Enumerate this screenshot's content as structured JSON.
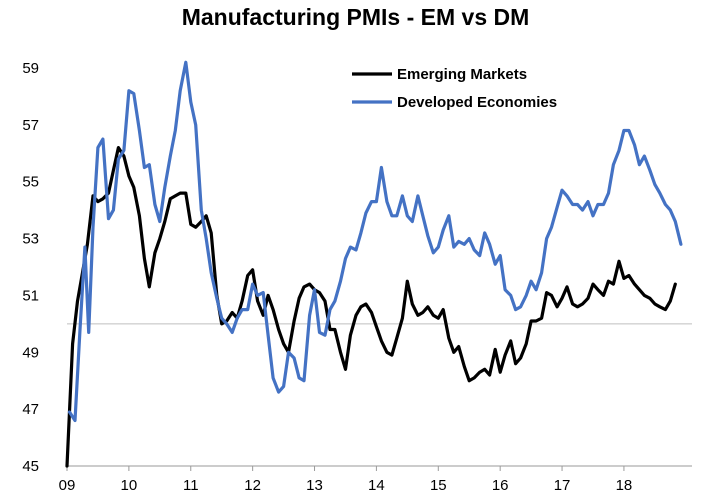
{
  "chart_data": {
    "type": "line",
    "title": "Manufacturing PMIs - EM vs DM",
    "xlabel": "",
    "ylabel": "",
    "xlim": [
      2009.0,
      2019.1
    ],
    "ylim": [
      45,
      59
    ],
    "y_ticks": [
      45,
      47,
      49,
      51,
      53,
      55,
      57,
      59
    ],
    "x_ticks": [
      {
        "value": 2009.0,
        "label": "09"
      },
      {
        "value": 2010.0,
        "label": "10"
      },
      {
        "value": 2011.0,
        "label": "11"
      },
      {
        "value": 2012.0,
        "label": "12"
      },
      {
        "value": 2013.0,
        "label": "13"
      },
      {
        "value": 2014.0,
        "label": "14"
      },
      {
        "value": 2015.0,
        "label": "15"
      },
      {
        "value": 2016.0,
        "label": "16"
      },
      {
        "value": 2017.0,
        "label": "17"
      },
      {
        "value": 2018.0,
        "label": "18"
      }
    ],
    "reference_line": 50,
    "grid": false,
    "legend_position": "top-right",
    "series": [
      {
        "name": "Emerging Markets",
        "color": "#000000",
        "points": [
          [
            2009.0,
            45.0
          ],
          [
            2009.09,
            49.3
          ],
          [
            2009.17,
            50.8
          ],
          [
            2009.25,
            51.8
          ],
          [
            2009.33,
            52.8
          ],
          [
            2009.42,
            54.5
          ],
          [
            2009.5,
            54.3
          ],
          [
            2009.58,
            54.4
          ],
          [
            2009.67,
            54.6
          ],
          [
            2009.75,
            55.4
          ],
          [
            2009.83,
            56.2
          ],
          [
            2009.92,
            55.9
          ],
          [
            2010.0,
            55.2
          ],
          [
            2010.08,
            54.8
          ],
          [
            2010.17,
            53.8
          ],
          [
            2010.25,
            52.3
          ],
          [
            2010.33,
            51.3
          ],
          [
            2010.42,
            52.5
          ],
          [
            2010.5,
            53.0
          ],
          [
            2010.58,
            53.6
          ],
          [
            2010.67,
            54.4
          ],
          [
            2010.75,
            54.5
          ],
          [
            2010.83,
            54.6
          ],
          [
            2010.92,
            54.6
          ],
          [
            2011.0,
            53.5
          ],
          [
            2011.08,
            53.4
          ],
          [
            2011.17,
            53.6
          ],
          [
            2011.25,
            53.8
          ],
          [
            2011.33,
            53.2
          ],
          [
            2011.42,
            51.0
          ],
          [
            2011.5,
            50.0
          ],
          [
            2011.58,
            50.1
          ],
          [
            2011.67,
            50.4
          ],
          [
            2011.75,
            50.2
          ],
          [
            2011.83,
            50.8
          ],
          [
            2011.92,
            51.7
          ],
          [
            2012.0,
            51.9
          ],
          [
            2012.08,
            50.8
          ],
          [
            2012.17,
            50.3
          ],
          [
            2012.25,
            51.0
          ],
          [
            2012.33,
            50.5
          ],
          [
            2012.42,
            49.8
          ],
          [
            2012.5,
            49.3
          ],
          [
            2012.58,
            49.0
          ],
          [
            2012.67,
            50.1
          ],
          [
            2012.75,
            50.9
          ],
          [
            2012.83,
            51.3
          ],
          [
            2012.92,
            51.4
          ],
          [
            2013.0,
            51.2
          ],
          [
            2013.08,
            51.1
          ],
          [
            2013.17,
            50.8
          ],
          [
            2013.25,
            49.8
          ],
          [
            2013.33,
            49.8
          ],
          [
            2013.42,
            49.0
          ],
          [
            2013.5,
            48.4
          ],
          [
            2013.58,
            49.6
          ],
          [
            2013.67,
            50.3
          ],
          [
            2013.75,
            50.6
          ],
          [
            2013.83,
            50.7
          ],
          [
            2013.92,
            50.4
          ],
          [
            2014.0,
            49.9
          ],
          [
            2014.08,
            49.4
          ],
          [
            2014.17,
            49.0
          ],
          [
            2014.25,
            48.9
          ],
          [
            2014.33,
            49.5
          ],
          [
            2014.42,
            50.2
          ],
          [
            2014.5,
            51.5
          ],
          [
            2014.58,
            50.7
          ],
          [
            2014.67,
            50.3
          ],
          [
            2014.75,
            50.4
          ],
          [
            2014.83,
            50.6
          ],
          [
            2014.92,
            50.3
          ],
          [
            2015.0,
            50.2
          ],
          [
            2015.08,
            50.5
          ],
          [
            2015.17,
            49.5
          ],
          [
            2015.25,
            49.0
          ],
          [
            2015.33,
            49.2
          ],
          [
            2015.42,
            48.5
          ],
          [
            2015.5,
            48.0
          ],
          [
            2015.58,
            48.1
          ],
          [
            2015.67,
            48.3
          ],
          [
            2015.75,
            48.4
          ],
          [
            2015.83,
            48.2
          ],
          [
            2015.92,
            49.1
          ],
          [
            2016.0,
            48.3
          ],
          [
            2016.08,
            48.9
          ],
          [
            2016.17,
            49.4
          ],
          [
            2016.25,
            48.6
          ],
          [
            2016.33,
            48.8
          ],
          [
            2016.42,
            49.3
          ],
          [
            2016.5,
            50.1
          ],
          [
            2016.58,
            50.1
          ],
          [
            2016.67,
            50.2
          ],
          [
            2016.75,
            51.1
          ],
          [
            2016.83,
            51.0
          ],
          [
            2016.92,
            50.6
          ],
          [
            2017.0,
            50.9
          ],
          [
            2017.08,
            51.3
          ],
          [
            2017.17,
            50.7
          ],
          [
            2017.25,
            50.6
          ],
          [
            2017.33,
            50.7
          ],
          [
            2017.42,
            50.9
          ],
          [
            2017.5,
            51.4
          ],
          [
            2017.58,
            51.2
          ],
          [
            2017.67,
            51.0
          ],
          [
            2017.75,
            51.5
          ],
          [
            2017.83,
            51.4
          ],
          [
            2017.92,
            52.2
          ],
          [
            2018.0,
            51.6
          ],
          [
            2018.08,
            51.7
          ],
          [
            2018.17,
            51.4
          ],
          [
            2018.25,
            51.2
          ],
          [
            2018.33,
            51.0
          ],
          [
            2018.42,
            50.9
          ],
          [
            2018.5,
            50.7
          ],
          [
            2018.58,
            50.6
          ],
          [
            2018.67,
            50.5
          ],
          [
            2018.75,
            50.8
          ],
          [
            2018.83,
            51.4
          ]
        ]
      },
      {
        "name": "Developed Economies",
        "color": "#4472c4",
        "points": [
          [
            2009.04,
            46.9
          ],
          [
            2009.13,
            46.6
          ],
          [
            2009.21,
            49.8
          ],
          [
            2009.29,
            52.7
          ],
          [
            2009.35,
            49.7
          ],
          [
            2009.42,
            53.4
          ],
          [
            2009.5,
            56.2
          ],
          [
            2009.58,
            56.5
          ],
          [
            2009.67,
            53.7
          ],
          [
            2009.75,
            54.0
          ],
          [
            2009.83,
            55.8
          ],
          [
            2009.92,
            56.1
          ],
          [
            2010.0,
            58.2
          ],
          [
            2010.08,
            58.1
          ],
          [
            2010.17,
            56.8
          ],
          [
            2010.25,
            55.5
          ],
          [
            2010.33,
            55.6
          ],
          [
            2010.42,
            54.2
          ],
          [
            2010.5,
            53.6
          ],
          [
            2010.58,
            54.8
          ],
          [
            2010.67,
            55.9
          ],
          [
            2010.75,
            56.8
          ],
          [
            2010.83,
            58.2
          ],
          [
            2010.92,
            59.2
          ],
          [
            2011.0,
            57.8
          ],
          [
            2011.08,
            57.0
          ],
          [
            2011.17,
            54.0
          ],
          [
            2011.25,
            53.0
          ],
          [
            2011.33,
            51.8
          ],
          [
            2011.42,
            50.9
          ],
          [
            2011.5,
            50.2
          ],
          [
            2011.58,
            50.0
          ],
          [
            2011.67,
            49.7
          ],
          [
            2011.75,
            50.2
          ],
          [
            2011.83,
            50.5
          ],
          [
            2011.92,
            50.5
          ],
          [
            2012.0,
            51.4
          ],
          [
            2012.08,
            51.0
          ],
          [
            2012.17,
            51.1
          ],
          [
            2012.25,
            49.6
          ],
          [
            2012.33,
            48.1
          ],
          [
            2012.42,
            47.6
          ],
          [
            2012.5,
            47.8
          ],
          [
            2012.58,
            49.0
          ],
          [
            2012.67,
            48.8
          ],
          [
            2012.75,
            48.1
          ],
          [
            2012.83,
            48.0
          ],
          [
            2012.92,
            50.3
          ],
          [
            2013.0,
            51.2
          ],
          [
            2013.08,
            49.7
          ],
          [
            2013.17,
            49.6
          ],
          [
            2013.25,
            50.5
          ],
          [
            2013.33,
            50.8
          ],
          [
            2013.42,
            51.5
          ],
          [
            2013.5,
            52.3
          ],
          [
            2013.58,
            52.7
          ],
          [
            2013.67,
            52.6
          ],
          [
            2013.75,
            53.2
          ],
          [
            2013.83,
            53.9
          ],
          [
            2013.92,
            54.3
          ],
          [
            2014.0,
            54.3
          ],
          [
            2014.08,
            55.5
          ],
          [
            2014.17,
            54.3
          ],
          [
            2014.25,
            53.8
          ],
          [
            2014.33,
            53.8
          ],
          [
            2014.42,
            54.5
          ],
          [
            2014.5,
            53.8
          ],
          [
            2014.58,
            53.6
          ],
          [
            2014.67,
            54.5
          ],
          [
            2014.75,
            53.8
          ],
          [
            2014.83,
            53.1
          ],
          [
            2014.92,
            52.5
          ],
          [
            2015.0,
            52.7
          ],
          [
            2015.08,
            53.3
          ],
          [
            2015.17,
            53.8
          ],
          [
            2015.25,
            52.7
          ],
          [
            2015.33,
            52.9
          ],
          [
            2015.42,
            52.8
          ],
          [
            2015.5,
            53.0
          ],
          [
            2015.58,
            52.6
          ],
          [
            2015.67,
            52.4
          ],
          [
            2015.75,
            53.2
          ],
          [
            2015.83,
            52.8
          ],
          [
            2015.92,
            52.1
          ],
          [
            2016.0,
            52.4
          ],
          [
            2016.08,
            51.2
          ],
          [
            2016.17,
            51.0
          ],
          [
            2016.25,
            50.5
          ],
          [
            2016.33,
            50.6
          ],
          [
            2016.42,
            51.0
          ],
          [
            2016.5,
            51.5
          ],
          [
            2016.58,
            51.2
          ],
          [
            2016.67,
            51.8
          ],
          [
            2016.75,
            53.0
          ],
          [
            2016.83,
            53.4
          ],
          [
            2016.92,
            54.1
          ],
          [
            2017.0,
            54.7
          ],
          [
            2017.08,
            54.5
          ],
          [
            2017.17,
            54.2
          ],
          [
            2017.25,
            54.2
          ],
          [
            2017.33,
            54.0
          ],
          [
            2017.42,
            54.3
          ],
          [
            2017.5,
            53.8
          ],
          [
            2017.58,
            54.2
          ],
          [
            2017.67,
            54.2
          ],
          [
            2017.75,
            54.6
          ],
          [
            2017.83,
            55.6
          ],
          [
            2017.92,
            56.1
          ],
          [
            2018.0,
            56.8
          ],
          [
            2018.08,
            56.8
          ],
          [
            2018.17,
            56.3
          ],
          [
            2018.25,
            55.6
          ],
          [
            2018.33,
            55.9
          ],
          [
            2018.42,
            55.4
          ],
          [
            2018.5,
            54.9
          ],
          [
            2018.58,
            54.6
          ],
          [
            2018.67,
            54.2
          ],
          [
            2018.75,
            54.0
          ],
          [
            2018.83,
            53.6
          ],
          [
            2018.92,
            52.8
          ]
        ]
      }
    ]
  }
}
